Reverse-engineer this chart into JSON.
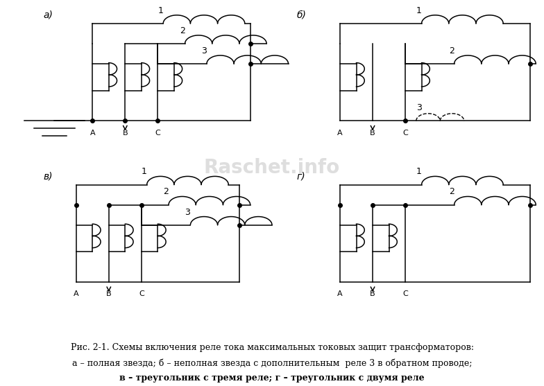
{
  "title_line1": "Рис. 2-1. Схемы включения реле тока максимальных токовых защит трансформаторов:",
  "title_line2": "а – полная звезда; б – неполная звезда с дополнительным  реле 3 в обратном проводе;",
  "title_line3": "в – треугольник с тремя реле; г – треугольник с двумя реле",
  "watermark": "Raschet.info",
  "bg_color": "#ffffff",
  "label_a": "а)",
  "label_b": "б)",
  "label_c": "в)",
  "label_d": "г)"
}
